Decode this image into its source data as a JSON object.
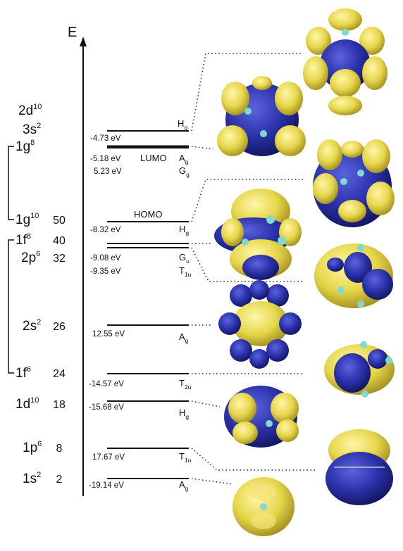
{
  "axis": {
    "label": "E"
  },
  "shells": [
    {
      "main": "2d",
      "sup": "10",
      "count": ""
    },
    {
      "main": "3s",
      "sup": "2",
      "count": ""
    },
    {
      "main": "1g",
      "sup": "8",
      "count": ""
    },
    {
      "main": "1g",
      "sup": "10",
      "count": "50"
    },
    {
      "main": "1f",
      "sup": "8",
      "count": "40"
    },
    {
      "main": "2p",
      "sup": "6",
      "count": "32"
    },
    {
      "main": "2s",
      "sup": "2",
      "count": "26"
    },
    {
      "main": "1f",
      "sup": "6",
      "count": "24"
    },
    {
      "main": "1d",
      "sup": "10",
      "count": "18"
    },
    {
      "main": "1p",
      "sup": "6",
      "count": "8"
    },
    {
      "main": "1s",
      "sup": "2",
      "count": "2"
    }
  ],
  "levels": [
    {
      "energy": "-4.73 eV",
      "sym": "H",
      "sub": "g",
      "tag": ""
    },
    {
      "energy": "-5.18 eV",
      "sym": "A",
      "sub": "g",
      "tag": "LUMO"
    },
    {
      "energy": "5.23 eV",
      "sym": "G",
      "sub": "g",
      "tag": ""
    },
    {
      "energy": "-8.32 eV",
      "sym": "H",
      "sub": "g",
      "tag": "HOMO"
    },
    {
      "energy": "-9.08 eV",
      "sym": "G",
      "sub": "u",
      "tag": ""
    },
    {
      "energy": "-9.35 eV",
      "sym": "T",
      "sub": "1u",
      "tag": ""
    },
    {
      "energy": "12.55 eV",
      "sym": "A",
      "sub": "g",
      "tag": ""
    },
    {
      "energy": "-14.57 eV",
      "sym": "T",
      "sub": "2u",
      "tag": ""
    },
    {
      "energy": "-15.68 eV",
      "sym": "H",
      "sub": "g",
      "tag": ""
    },
    {
      "energy": "17.67 eV",
      "sym": "T",
      "sub": "1u",
      "tag": ""
    },
    {
      "energy": "-19.14 eV",
      "sym": "A",
      "sub": "g",
      "tag": ""
    }
  ],
  "colors": {
    "lobe_positive": "#e6d64a",
    "lobe_negative": "#2a31a8",
    "atom": "#7fd9d0",
    "line": "#111111"
  }
}
